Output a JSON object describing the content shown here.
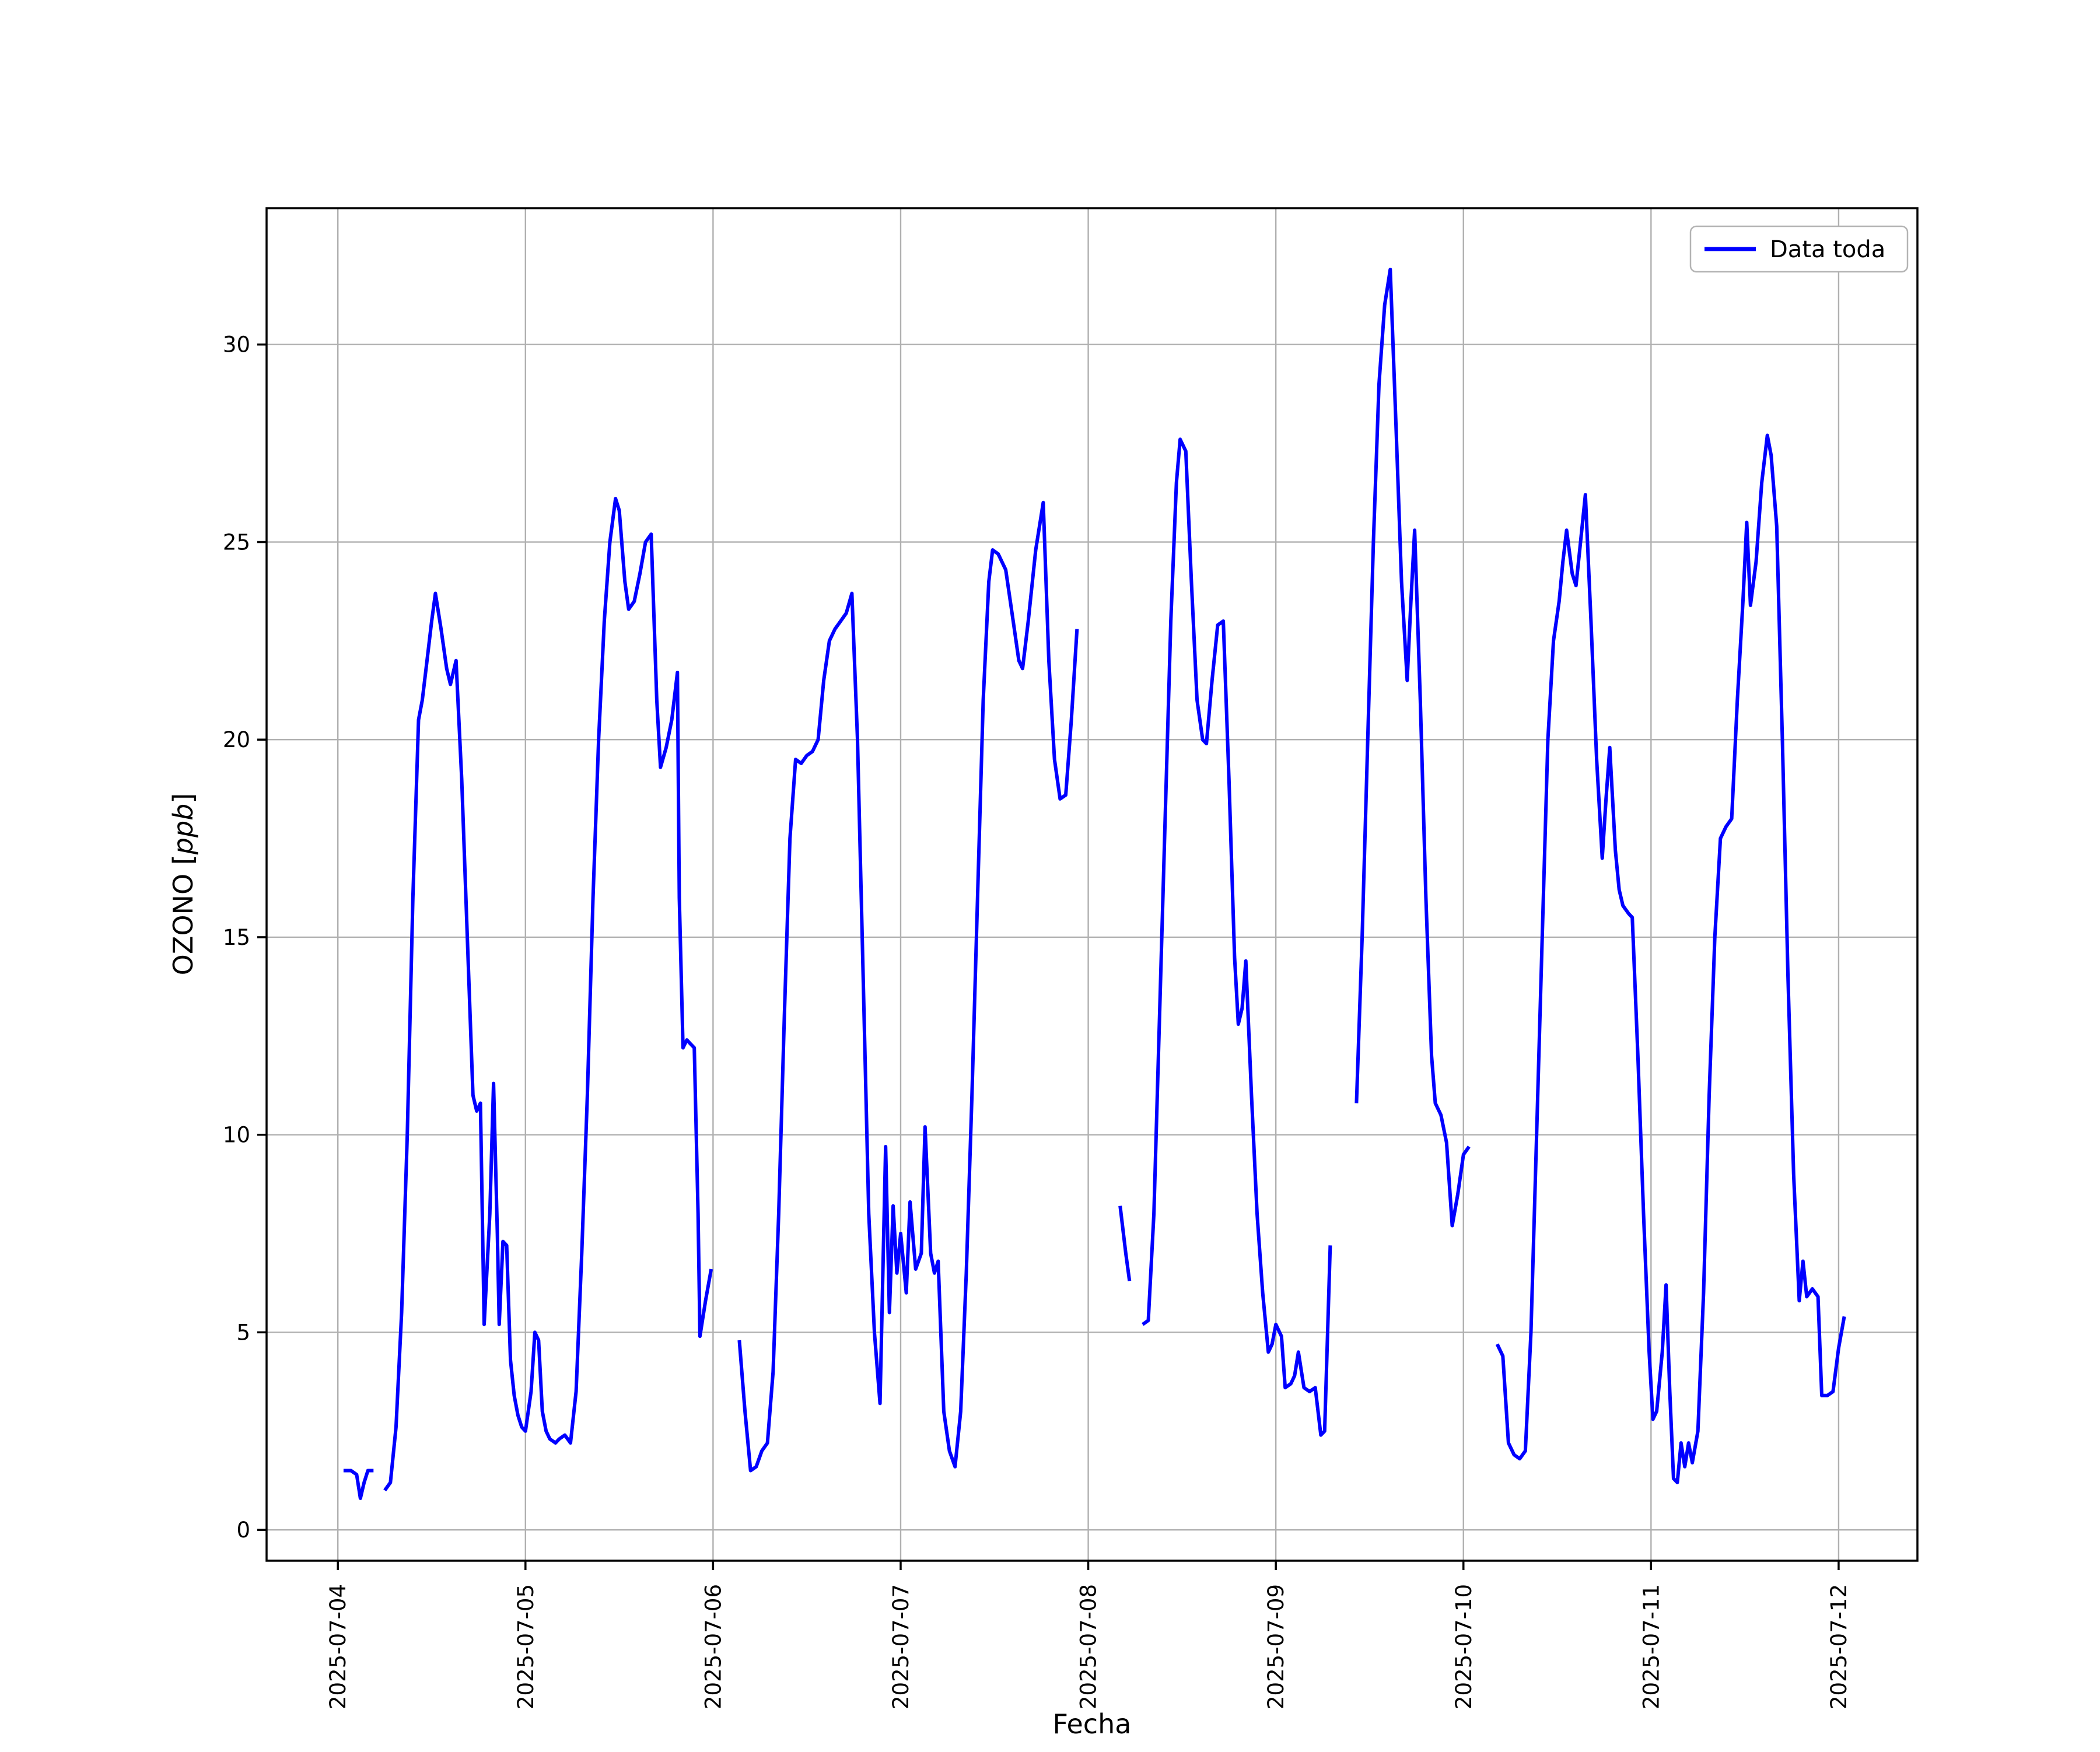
{
  "figure": {
    "background": "#ffffff",
    "ylabel_prefix": "OZONO [",
    "ylabel_math": "ppb",
    "ylabel_suffix": "]"
  },
  "chart_data": {
    "type": "line",
    "title": "",
    "xlabel": "Fecha",
    "ylabel": "OZONO [ppb]",
    "grid": true,
    "legend_position": "upper right",
    "line_color": "#0000ff",
    "grid_color": "#b0b0b0",
    "axis_color": "#000000",
    "x_unit": "days since 2025-07-04 00:00",
    "xlim_days": [
      -0.38,
      8.42
    ],
    "ylim": [
      -0.78,
      33.45
    ],
    "y_ticks": [
      0,
      5,
      10,
      15,
      20,
      25,
      30
    ],
    "x_ticks": {
      "values": [
        0,
        1,
        2,
        3,
        4,
        5,
        6,
        7,
        8
      ],
      "labels": [
        "2025-07-04",
        "2025-07-05",
        "2025-07-06",
        "2025-07-07",
        "2025-07-08",
        "2025-07-09",
        "2025-07-10",
        "2025-07-11",
        "2025-07-12"
      ]
    },
    "series": [
      {
        "name": "Data toda",
        "color": "#0000ff",
        "points": [
          [
            0.03,
            1.5
          ],
          [
            0.07,
            1.5
          ],
          [
            0.1,
            1.4
          ],
          [
            0.12,
            0.8
          ],
          [
            0.14,
            1.2
          ],
          [
            0.16,
            1.5
          ],
          [
            0.19,
            1.5
          ],
          null,
          [
            0.25,
            1.0
          ],
          [
            0.28,
            1.2
          ],
          [
            0.31,
            2.6
          ],
          [
            0.34,
            5.5
          ],
          [
            0.37,
            10.0
          ],
          [
            0.4,
            16.0
          ],
          [
            0.43,
            20.5
          ],
          [
            0.45,
            21.0
          ],
          [
            0.47,
            21.8
          ],
          [
            0.5,
            23.0
          ],
          [
            0.52,
            23.7
          ],
          [
            0.55,
            22.8
          ],
          [
            0.58,
            21.8
          ],
          [
            0.6,
            21.4
          ],
          [
            0.63,
            22.0
          ],
          [
            0.66,
            19.0
          ],
          [
            0.69,
            15.0
          ],
          [
            0.72,
            11.0
          ],
          [
            0.74,
            10.6
          ],
          [
            0.76,
            10.8
          ],
          [
            0.78,
            5.2
          ],
          [
            0.81,
            8.0
          ],
          [
            0.83,
            11.3
          ],
          [
            0.85,
            7.5
          ],
          [
            0.86,
            5.2
          ],
          [
            0.88,
            7.3
          ],
          [
            0.9,
            7.2
          ],
          [
            0.92,
            4.3
          ],
          [
            0.94,
            3.4
          ],
          [
            0.96,
            2.9
          ],
          [
            0.98,
            2.6
          ],
          [
            1.0,
            2.5
          ],
          [
            1.03,
            3.5
          ],
          [
            1.05,
            5.0
          ],
          [
            1.07,
            4.8
          ],
          [
            1.09,
            3.0
          ],
          [
            1.11,
            2.5
          ],
          [
            1.13,
            2.3
          ],
          [
            1.16,
            2.2
          ],
          [
            1.18,
            2.3
          ],
          [
            1.21,
            2.4
          ],
          [
            1.24,
            2.2
          ],
          [
            1.27,
            3.5
          ],
          [
            1.3,
            7.0
          ],
          [
            1.33,
            11.0
          ],
          [
            1.36,
            16.0
          ],
          [
            1.39,
            20.0
          ],
          [
            1.42,
            23.0
          ],
          [
            1.45,
            25.0
          ],
          [
            1.48,
            26.1
          ],
          [
            1.5,
            25.8
          ],
          [
            1.53,
            24.0
          ],
          [
            1.55,
            23.3
          ],
          [
            1.58,
            23.5
          ],
          [
            1.61,
            24.2
          ],
          [
            1.64,
            25.0
          ],
          [
            1.67,
            25.2
          ],
          [
            1.7,
            21.0
          ],
          [
            1.72,
            19.3
          ],
          [
            1.75,
            19.8
          ],
          [
            1.78,
            20.5
          ],
          [
            1.81,
            21.7
          ],
          [
            1.82,
            16.0
          ],
          [
            1.84,
            12.2
          ],
          [
            1.86,
            12.4
          ],
          [
            1.88,
            12.3
          ],
          [
            1.9,
            12.2
          ],
          [
            1.92,
            8.0
          ],
          [
            1.93,
            4.9
          ],
          [
            1.96,
            5.8
          ],
          [
            1.99,
            6.6
          ],
          null,
          [
            2.14,
            4.8
          ],
          [
            2.17,
            3.0
          ],
          [
            2.2,
            1.5
          ],
          [
            2.23,
            1.6
          ],
          [
            2.26,
            2.0
          ],
          [
            2.29,
            2.2
          ],
          [
            2.32,
            4.0
          ],
          [
            2.35,
            8.0
          ],
          [
            2.38,
            13.0
          ],
          [
            2.41,
            17.5
          ],
          [
            2.44,
            19.5
          ],
          [
            2.47,
            19.4
          ],
          [
            2.5,
            19.6
          ],
          [
            2.53,
            19.7
          ],
          [
            2.56,
            20.0
          ],
          [
            2.59,
            21.5
          ],
          [
            2.62,
            22.5
          ],
          [
            2.65,
            22.8
          ],
          [
            2.68,
            23.0
          ],
          [
            2.71,
            23.2
          ],
          [
            2.74,
            23.7
          ],
          [
            2.77,
            20.0
          ],
          [
            2.8,
            14.0
          ],
          [
            2.83,
            8.0
          ],
          [
            2.86,
            5.0
          ],
          [
            2.89,
            3.2
          ],
          [
            2.92,
            9.7
          ],
          [
            2.94,
            5.5
          ],
          [
            2.96,
            8.2
          ],
          [
            2.98,
            6.5
          ],
          [
            3.0,
            7.5
          ],
          [
            3.03,
            6.0
          ],
          [
            3.05,
            8.3
          ],
          [
            3.08,
            6.6
          ],
          [
            3.11,
            7.0
          ],
          [
            3.13,
            10.2
          ],
          [
            3.16,
            7.0
          ],
          [
            3.18,
            6.5
          ],
          [
            3.2,
            6.8
          ],
          [
            3.23,
            3.0
          ],
          [
            3.26,
            2.0
          ],
          [
            3.29,
            1.6
          ],
          [
            3.32,
            3.0
          ],
          [
            3.35,
            6.5
          ],
          [
            3.38,
            11.0
          ],
          [
            3.41,
            16.0
          ],
          [
            3.44,
            21.0
          ],
          [
            3.47,
            24.0
          ],
          [
            3.49,
            24.8
          ],
          [
            3.52,
            24.7
          ],
          [
            3.56,
            24.3
          ],
          [
            3.6,
            23.0
          ],
          [
            3.63,
            22.0
          ],
          [
            3.65,
            21.8
          ],
          [
            3.68,
            23.0
          ],
          [
            3.72,
            24.8
          ],
          [
            3.76,
            26.0
          ],
          [
            3.79,
            22.0
          ],
          [
            3.82,
            19.5
          ],
          [
            3.85,
            18.5
          ],
          [
            3.88,
            18.6
          ],
          [
            3.91,
            20.5
          ],
          [
            3.94,
            22.8
          ],
          null,
          [
            4.17,
            8.2
          ],
          [
            4.2,
            7.0
          ],
          [
            4.22,
            6.3
          ],
          null,
          [
            4.29,
            5.2
          ],
          [
            4.32,
            5.3
          ],
          [
            4.35,
            8.0
          ],
          [
            4.38,
            13.0
          ],
          [
            4.41,
            18.0
          ],
          [
            4.44,
            23.0
          ],
          [
            4.47,
            26.5
          ],
          [
            4.49,
            27.6
          ],
          [
            4.52,
            27.3
          ],
          [
            4.55,
            24.0
          ],
          [
            4.58,
            21.0
          ],
          [
            4.61,
            20.0
          ],
          [
            4.63,
            19.9
          ],
          [
            4.66,
            21.5
          ],
          [
            4.69,
            22.9
          ],
          [
            4.72,
            23.0
          ],
          [
            4.75,
            19.0
          ],
          [
            4.78,
            14.5
          ],
          [
            4.8,
            12.8
          ],
          [
            4.82,
            13.2
          ],
          [
            4.84,
            14.4
          ],
          [
            4.87,
            11.0
          ],
          [
            4.9,
            8.0
          ],
          [
            4.93,
            6.0
          ],
          [
            4.96,
            4.5
          ],
          [
            4.98,
            4.7
          ],
          [
            5.0,
            5.2
          ],
          [
            5.03,
            4.9
          ],
          [
            5.05,
            3.6
          ],
          [
            5.08,
            3.7
          ],
          [
            5.1,
            3.9
          ],
          [
            5.12,
            4.5
          ],
          [
            5.15,
            3.6
          ],
          [
            5.18,
            3.5
          ],
          [
            5.21,
            3.6
          ],
          [
            5.24,
            2.4
          ],
          [
            5.26,
            2.5
          ],
          [
            5.29,
            7.2
          ],
          null,
          [
            5.43,
            10.8
          ],
          [
            5.46,
            15.0
          ],
          [
            5.49,
            20.0
          ],
          [
            5.52,
            25.0
          ],
          [
            5.55,
            29.0
          ],
          [
            5.58,
            31.0
          ],
          [
            5.61,
            31.9
          ],
          [
            5.64,
            28.0
          ],
          [
            5.67,
            24.0
          ],
          [
            5.7,
            21.5
          ],
          [
            5.72,
            23.5
          ],
          [
            5.74,
            25.3
          ],
          [
            5.77,
            21.0
          ],
          [
            5.8,
            16.0
          ],
          [
            5.83,
            12.0
          ],
          [
            5.85,
            10.8
          ],
          [
            5.88,
            10.5
          ],
          [
            5.91,
            9.8
          ],
          [
            5.94,
            7.7
          ],
          [
            5.97,
            8.5
          ],
          [
            6.0,
            9.5
          ],
          [
            6.03,
            9.7
          ],
          null,
          [
            6.18,
            4.7
          ],
          [
            6.21,
            4.4
          ],
          [
            6.24,
            2.2
          ],
          [
            6.27,
            1.9
          ],
          [
            6.3,
            1.8
          ],
          [
            6.33,
            2.0
          ],
          [
            6.36,
            5.0
          ],
          [
            6.39,
            10.0
          ],
          [
            6.42,
            15.0
          ],
          [
            6.45,
            20.0
          ],
          [
            6.48,
            22.5
          ],
          [
            6.51,
            23.5
          ],
          [
            6.53,
            24.5
          ],
          [
            6.55,
            25.3
          ],
          [
            6.58,
            24.2
          ],
          [
            6.6,
            23.9
          ],
          [
            6.62,
            24.8
          ],
          [
            6.65,
            26.2
          ],
          [
            6.68,
            23.0
          ],
          [
            6.71,
            19.5
          ],
          [
            6.74,
            17.0
          ],
          [
            6.76,
            18.5
          ],
          [
            6.78,
            19.8
          ],
          [
            6.81,
            17.2
          ],
          [
            6.83,
            16.2
          ],
          [
            6.85,
            15.8
          ],
          [
            6.88,
            15.6
          ],
          [
            6.9,
            15.5
          ],
          [
            6.93,
            12.0
          ],
          [
            6.96,
            8.0
          ],
          [
            6.99,
            4.5
          ],
          [
            7.01,
            2.8
          ],
          [
            7.03,
            3.0
          ],
          [
            7.06,
            4.5
          ],
          [
            7.08,
            6.2
          ],
          [
            7.1,
            3.5
          ],
          [
            7.12,
            1.3
          ],
          [
            7.14,
            1.2
          ],
          [
            7.16,
            2.2
          ],
          [
            7.18,
            1.6
          ],
          [
            7.2,
            2.2
          ],
          [
            7.22,
            1.7
          ],
          [
            7.25,
            2.5
          ],
          [
            7.28,
            6.0
          ],
          [
            7.31,
            11.0
          ],
          [
            7.34,
            15.0
          ],
          [
            7.37,
            17.5
          ],
          [
            7.4,
            17.8
          ],
          [
            7.43,
            18.0
          ],
          [
            7.46,
            21.0
          ],
          [
            7.49,
            23.5
          ],
          [
            7.51,
            25.5
          ],
          [
            7.53,
            23.4
          ],
          [
            7.56,
            24.5
          ],
          [
            7.59,
            26.5
          ],
          [
            7.62,
            27.7
          ],
          [
            7.64,
            27.2
          ],
          [
            7.67,
            25.4
          ],
          [
            7.7,
            20.0
          ],
          [
            7.73,
            14.0
          ],
          [
            7.76,
            9.0
          ],
          [
            7.79,
            5.8
          ],
          [
            7.81,
            6.8
          ],
          [
            7.83,
            5.9
          ],
          [
            7.86,
            6.1
          ],
          [
            7.89,
            5.9
          ],
          [
            7.91,
            3.4
          ],
          [
            7.94,
            3.4
          ],
          [
            7.97,
            3.5
          ],
          [
            8.0,
            4.6
          ],
          [
            8.03,
            5.4
          ]
        ]
      }
    ]
  }
}
